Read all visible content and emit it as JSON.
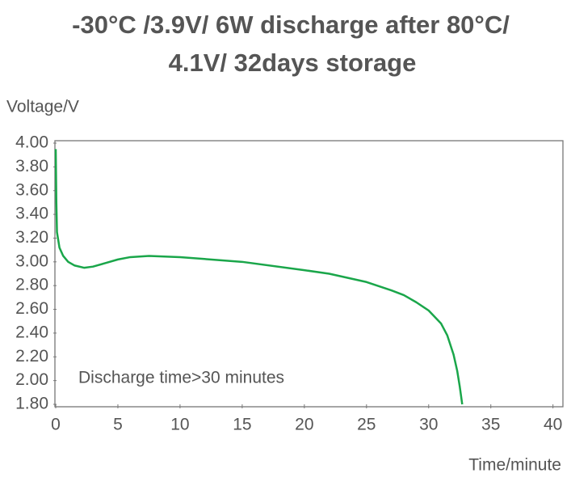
{
  "chart_data": {
    "type": "line",
    "title": [
      "-30°C /3.9V/ 6W discharge after 80°C/",
      "4.1V/ 32days storage"
    ],
    "y_label": "Voltage/V",
    "x_label": "Time/minute",
    "annotation": "Discharge time>30 minutes",
    "series": [
      {
        "color": "#1aa64a",
        "x": [
          0,
          0.05,
          0.1,
          0.3,
          0.6,
          1,
          1.5,
          2.3,
          3,
          4,
          5,
          6,
          7.5,
          10,
          15,
          20,
          22,
          25,
          27,
          28,
          29,
          30,
          31,
          31.5,
          32,
          32.3,
          32.5,
          32.7
        ],
        "values": [
          3.95,
          3.5,
          3.25,
          3.12,
          3.05,
          3.0,
          2.97,
          2.95,
          2.96,
          2.99,
          3.02,
          3.04,
          3.05,
          3.04,
          3.0,
          2.93,
          2.9,
          2.83,
          2.76,
          2.72,
          2.66,
          2.59,
          2.48,
          2.38,
          2.22,
          2.08,
          1.95,
          1.8
        ]
      }
    ],
    "xlim": [
      0,
      40.8
    ],
    "xticks": [
      0,
      5,
      10,
      15,
      20,
      25,
      30,
      35,
      40
    ],
    "ylim": [
      1.8,
      4.0
    ],
    "yticks": [
      {
        "value": 1.8,
        "label": "1.80"
      },
      {
        "value": 2.0,
        "label": "2.00"
      },
      {
        "value": 2.2,
        "label": "2.20"
      },
      {
        "value": 2.4,
        "label": "2.40"
      },
      {
        "value": 2.6,
        "label": "2.60"
      },
      {
        "value": 2.8,
        "label": "2.80"
      },
      {
        "value": 3.0,
        "label": "3.00"
      },
      {
        "value": 3.2,
        "label": "3.20"
      },
      {
        "value": 3.4,
        "label": "3.40"
      },
      {
        "value": 3.6,
        "label": "3.60"
      },
      {
        "value": 3.8,
        "label": "3.80"
      },
      {
        "value": 4.0,
        "label": "4.00"
      }
    ],
    "grid": false
  }
}
